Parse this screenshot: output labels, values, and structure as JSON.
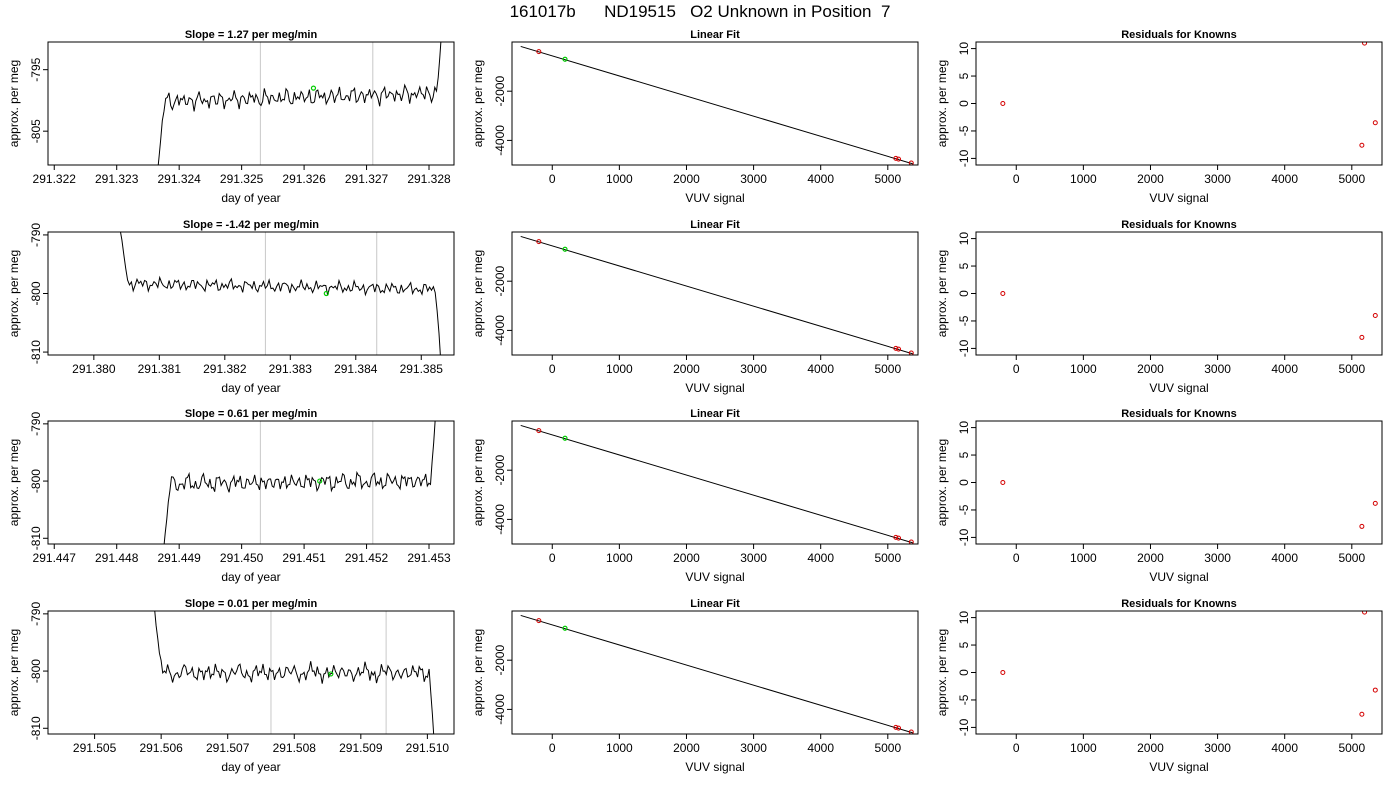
{
  "page_title": "161017b      ND19515   O2 Unknown in Position  7",
  "colors": {
    "line": "#000000",
    "known_point": "#d40000",
    "unknown_point": "#00cc00",
    "window_line": "#c8c8c8"
  },
  "chart_data": [
    {
      "type": "line",
      "row": 1,
      "title": "Slope =  1.27  per meg/min",
      "xlabel": "day of year",
      "ylabel": "approx. per meg",
      "xlim": [
        291.3219,
        291.3284
      ],
      "ylim": [
        -810.5,
        -790.5
      ],
      "xticks": [
        "291.322",
        "291.323",
        "291.324",
        "291.325",
        "291.326",
        "291.327",
        "291.328"
      ],
      "xtick_values": [
        291.322,
        291.323,
        291.324,
        291.325,
        291.326,
        291.327,
        291.328
      ],
      "yticks": [
        "-795",
        "-805"
      ],
      "ytick_values": [
        -795,
        -805
      ],
      "window": [
        291.3253,
        291.3271
      ],
      "start": 291.32365,
      "end": 291.3282,
      "baseline": -799.5,
      "wiggle": 1.4,
      "slope_per_span": 1.4,
      "head_y": -812,
      "tail_y": -789,
      "marker": {
        "x": 291.32615,
        "y": -798.0
      }
    },
    {
      "type": "scatter",
      "row": 1,
      "title": "Linear Fit",
      "xlabel": "VUV signal",
      "ylabel": "approx. per meg",
      "xlim": [
        -600,
        5450
      ],
      "ylim": [
        -5000,
        0
      ],
      "xticks": [
        "0",
        "1000",
        "2000",
        "3000",
        "4000",
        "5000"
      ],
      "xtick_values": [
        0,
        1000,
        2000,
        3000,
        4000,
        5000
      ],
      "yticks": [
        "-2000",
        "-4000"
      ],
      "ytick_values": [
        -2000,
        -4000
      ],
      "fit_line": {
        "x": [
          -470,
          5380
        ],
        "y": [
          -180,
          -4960
        ]
      },
      "known_points": {
        "x": [
          -200,
          5120,
          5160,
          5350
        ],
        "y": [
          -390,
          -4730,
          -4760,
          -4920
        ]
      },
      "unknown_points": {
        "x": [
          190
        ],
        "y": [
          -700
        ]
      }
    },
    {
      "type": "scatter",
      "row": 1,
      "title": "Residuals for Knowns",
      "xlabel": "VUV signal",
      "ylabel": "approx. per meg",
      "xlim": [
        -600,
        5450
      ],
      "ylim": [
        -11.2,
        11.2
      ],
      "xticks": [
        "0",
        "1000",
        "2000",
        "3000",
        "4000",
        "5000"
      ],
      "xtick_values": [
        0,
        1000,
        2000,
        3000,
        4000,
        5000
      ],
      "yticks": [
        "-10",
        "-5",
        "0",
        "5",
        "10"
      ],
      "ytick_values": [
        -10,
        -5,
        0,
        5,
        10
      ],
      "known_points": {
        "x": [
          -200,
          5150,
          5190,
          5350
        ],
        "y": [
          0,
          -7.6,
          11,
          -3.5
        ]
      }
    },
    {
      "type": "line",
      "row": 2,
      "title": "Slope =  -1.42  per meg/min",
      "xlabel": "day of year",
      "ylabel": "approx. per meg",
      "xlim": [
        291.3793,
        291.3855
      ],
      "ylim": [
        -810.5,
        -789.5
      ],
      "xticks": [
        "291.380",
        "291.381",
        "291.382",
        "291.383",
        "291.384",
        "291.385"
      ],
      "xtick_values": [
        291.38,
        291.381,
        291.382,
        291.383,
        291.384,
        291.385
      ],
      "yticks": [
        "-790",
        "-800",
        "-810"
      ],
      "ytick_values": [
        -790,
        -800,
        -810
      ],
      "window": [
        291.38262,
        291.38432
      ],
      "start": 291.3804,
      "end": 291.3853,
      "baseline": -798.8,
      "wiggle": 1.5,
      "slope_per_span": -1.0,
      "head_y": -789,
      "tail_y": -812,
      "marker": {
        "x": 291.38355,
        "y": -800.0
      }
    },
    {
      "type": "scatter",
      "row": 2,
      "title": "Linear Fit",
      "xlabel": "VUV signal",
      "ylabel": "approx. per meg",
      "xlim": [
        -600,
        5450
      ],
      "ylim": [
        -5000,
        0
      ],
      "xticks": [
        "0",
        "1000",
        "2000",
        "3000",
        "4000",
        "5000"
      ],
      "xtick_values": [
        0,
        1000,
        2000,
        3000,
        4000,
        5000
      ],
      "yticks": [
        "-2000",
        "-4000"
      ],
      "ytick_values": [
        -2000,
        -4000
      ],
      "fit_line": {
        "x": [
          -470,
          5380
        ],
        "y": [
          -180,
          -4960
        ]
      },
      "known_points": {
        "x": [
          -200,
          5120,
          5160,
          5350
        ],
        "y": [
          -390,
          -4730,
          -4760,
          -4920
        ]
      },
      "unknown_points": {
        "x": [
          190
        ],
        "y": [
          -700
        ]
      }
    },
    {
      "type": "scatter",
      "row": 2,
      "title": "Residuals for Knowns",
      "xlabel": "VUV signal",
      "ylabel": "approx. per meg",
      "xlim": [
        -600,
        5450
      ],
      "ylim": [
        -11.2,
        11.2
      ],
      "xticks": [
        "0",
        "1000",
        "2000",
        "3000",
        "4000",
        "5000"
      ],
      "xtick_values": [
        0,
        1000,
        2000,
        3000,
        4000,
        5000
      ],
      "yticks": [
        "-10",
        "-5",
        "0",
        "5",
        "10"
      ],
      "ytick_values": [
        -10,
        -5,
        0,
        5,
        10
      ],
      "known_points": {
        "x": [
          -200,
          5150,
          5350
        ],
        "y": [
          0,
          -8,
          -4
        ]
      }
    },
    {
      "type": "line",
      "row": 3,
      "title": "Slope =  0.61  per meg/min",
      "xlabel": "day of year",
      "ylabel": "approx. per meg",
      "xlim": [
        291.4469,
        291.4534
      ],
      "ylim": [
        -811,
        -789.5
      ],
      "xticks": [
        "291.447",
        "291.448",
        "291.449",
        "291.450",
        "291.451",
        "291.452",
        "291.453"
      ],
      "xtick_values": [
        291.447,
        291.448,
        291.449,
        291.45,
        291.451,
        291.452,
        291.453
      ],
      "yticks": [
        "-790",
        "-800",
        "-810"
      ],
      "ytick_values": [
        -790,
        -800,
        -810
      ],
      "window": [
        291.4503,
        291.4521
      ],
      "start": 291.44875,
      "end": 291.4531,
      "baseline": -800.2,
      "wiggle": 1.5,
      "slope_per_span": 0.5,
      "head_y": -812,
      "tail_y": -789,
      "marker": {
        "x": 291.45125,
        "y": -800.0
      }
    },
    {
      "type": "scatter",
      "row": 3,
      "title": "Linear Fit",
      "xlabel": "VUV signal",
      "ylabel": "approx. per meg",
      "xlim": [
        -600,
        5450
      ],
      "ylim": [
        -5000,
        0
      ],
      "xticks": [
        "0",
        "1000",
        "2000",
        "3000",
        "4000",
        "5000"
      ],
      "xtick_values": [
        0,
        1000,
        2000,
        3000,
        4000,
        5000
      ],
      "yticks": [
        "-2000",
        "-4000"
      ],
      "ytick_values": [
        -2000,
        -4000
      ],
      "fit_line": {
        "x": [
          -470,
          5380
        ],
        "y": [
          -180,
          -4960
        ]
      },
      "known_points": {
        "x": [
          -200,
          5120,
          5160,
          5350
        ],
        "y": [
          -390,
          -4730,
          -4760,
          -4920
        ]
      },
      "unknown_points": {
        "x": [
          190
        ],
        "y": [
          -700
        ]
      }
    },
    {
      "type": "scatter",
      "row": 3,
      "title": "Residuals for Knowns",
      "xlabel": "VUV signal",
      "ylabel": "approx. per meg",
      "xlim": [
        -600,
        5450
      ],
      "ylim": [
        -11.2,
        11.2
      ],
      "xticks": [
        "0",
        "1000",
        "2000",
        "3000",
        "4000",
        "5000"
      ],
      "xtick_values": [
        0,
        1000,
        2000,
        3000,
        4000,
        5000
      ],
      "yticks": [
        "-10",
        "-5",
        "0",
        "5",
        "10"
      ],
      "ytick_values": [
        -10,
        -5,
        0,
        5,
        10
      ],
      "known_points": {
        "x": [
          -200,
          5150,
          5350
        ],
        "y": [
          0,
          -8,
          -3.8
        ]
      }
    },
    {
      "type": "line",
      "row": 4,
      "title": "Slope =  0.01  per meg/min",
      "xlabel": "day of year",
      "ylabel": "approx. per meg",
      "xlim": [
        291.5043,
        291.5104
      ],
      "ylim": [
        -811,
        -789.5
      ],
      "xticks": [
        "291.505",
        "291.506",
        "291.507",
        "291.508",
        "291.509",
        "291.510"
      ],
      "xtick_values": [
        291.505,
        291.506,
        291.507,
        291.508,
        291.509,
        291.51
      ],
      "yticks": [
        "-790",
        "-800",
        "-810"
      ],
      "ytick_values": [
        -790,
        -800,
        -810
      ],
      "window": [
        291.50765,
        291.50938
      ],
      "start": 291.5059,
      "end": 291.5101,
      "baseline": -800.3,
      "wiggle": 1.5,
      "slope_per_span": 0.0,
      "head_y": -789,
      "tail_y": -812,
      "marker": {
        "x": 291.50855,
        "y": -800.5
      }
    },
    {
      "type": "scatter",
      "row": 4,
      "title": "Linear Fit",
      "xlabel": "VUV signal",
      "ylabel": "approx. per meg",
      "xlim": [
        -600,
        5450
      ],
      "ylim": [
        -5000,
        0
      ],
      "xticks": [
        "0",
        "1000",
        "2000",
        "3000",
        "4000",
        "5000"
      ],
      "xtick_values": [
        0,
        1000,
        2000,
        3000,
        4000,
        5000
      ],
      "yticks": [
        "-2000",
        "-4000"
      ],
      "ytick_values": [
        -2000,
        -4000
      ],
      "fit_line": {
        "x": [
          -470,
          5380
        ],
        "y": [
          -180,
          -4960
        ]
      },
      "known_points": {
        "x": [
          -200,
          5120,
          5160,
          5350
        ],
        "y": [
          -390,
          -4730,
          -4760,
          -4920
        ]
      },
      "unknown_points": {
        "x": [
          190
        ],
        "y": [
          -700
        ]
      }
    },
    {
      "type": "scatter",
      "row": 4,
      "title": "Residuals for Knowns",
      "xlabel": "VUV signal",
      "ylabel": "approx. per meg",
      "xlim": [
        -600,
        5450
      ],
      "ylim": [
        -11.2,
        11.2
      ],
      "xticks": [
        "0",
        "1000",
        "2000",
        "3000",
        "4000",
        "5000"
      ],
      "xtick_values": [
        0,
        1000,
        2000,
        3000,
        4000,
        5000
      ],
      "yticks": [
        "-10",
        "-5",
        "0",
        "5",
        "10"
      ],
      "ytick_values": [
        -10,
        -5,
        0,
        5,
        10
      ],
      "known_points": {
        "x": [
          -200,
          5150,
          5190,
          5350
        ],
        "y": [
          0,
          -7.6,
          11,
          -3.2
        ]
      }
    }
  ]
}
